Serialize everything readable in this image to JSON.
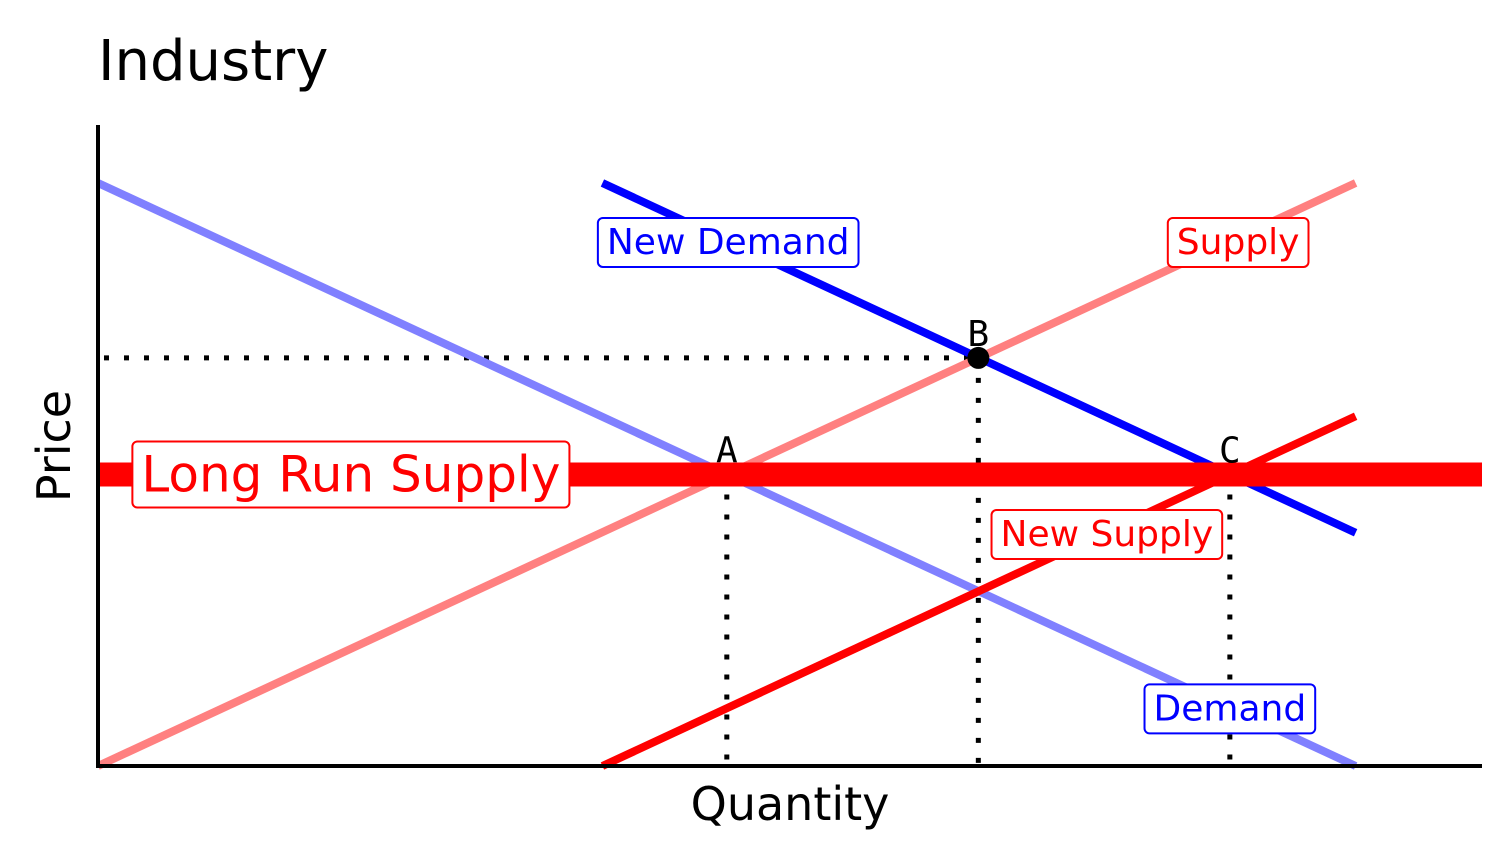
{
  "chart_data": {
    "type": "line",
    "title": "Industry",
    "xlabel": "Quantity",
    "ylabel": "Price",
    "xlim": [
      0,
      10
    ],
    "ylim": [
      0,
      10
    ],
    "grid": false,
    "series": [
      {
        "name": "Demand",
        "points": [
          [
            0,
            10
          ],
          [
            9.1,
            0
          ]
        ],
        "color": "#8080ff"
      },
      {
        "name": "Supply",
        "points": [
          [
            0,
            0
          ],
          [
            9.1,
            10
          ]
        ],
        "color": "#ff8080"
      },
      {
        "name": "New Demand",
        "points": [
          [
            3.65,
            10
          ],
          [
            9.1,
            4.0
          ]
        ],
        "color": "#0000ff"
      },
      {
        "name": "New Supply",
        "points": [
          [
            3.65,
            0
          ],
          [
            9.1,
            6.0
          ]
        ],
        "color": "#ff0000"
      },
      {
        "name": "Long Run Supply",
        "points": [
          [
            0,
            5.0
          ],
          [
            10,
            5.0
          ]
        ],
        "color": "#ff0000"
      }
    ],
    "points": [
      {
        "label": "A",
        "x": 4.55,
        "y": 5.0,
        "marker": false
      },
      {
        "label": "B",
        "x": 6.37,
        "y": 7.0,
        "marker": true
      },
      {
        "label": "C",
        "x": 8.19,
        "y": 5.0,
        "marker": false
      }
    ],
    "series_labels": [
      {
        "text": "New Demand",
        "series": "New Demand",
        "x": 4.56,
        "y": 8.98,
        "color": "#0000ff"
      },
      {
        "text": "Supply",
        "series": "Supply",
        "x": 8.25,
        "y": 8.98,
        "color": "#ff0000"
      },
      {
        "text": "Long Run Supply",
        "series": "Long Run Supply",
        "x": 1.83,
        "y": 5.0,
        "color": "#ff0000"
      },
      {
        "text": "New Supply",
        "series": "New Supply",
        "x": 7.3,
        "y": 3.97,
        "color": "#ff0000"
      },
      {
        "text": "Demand",
        "series": "Demand",
        "x": 8.19,
        "y": 0.98,
        "color": "#0000ff"
      }
    ]
  }
}
